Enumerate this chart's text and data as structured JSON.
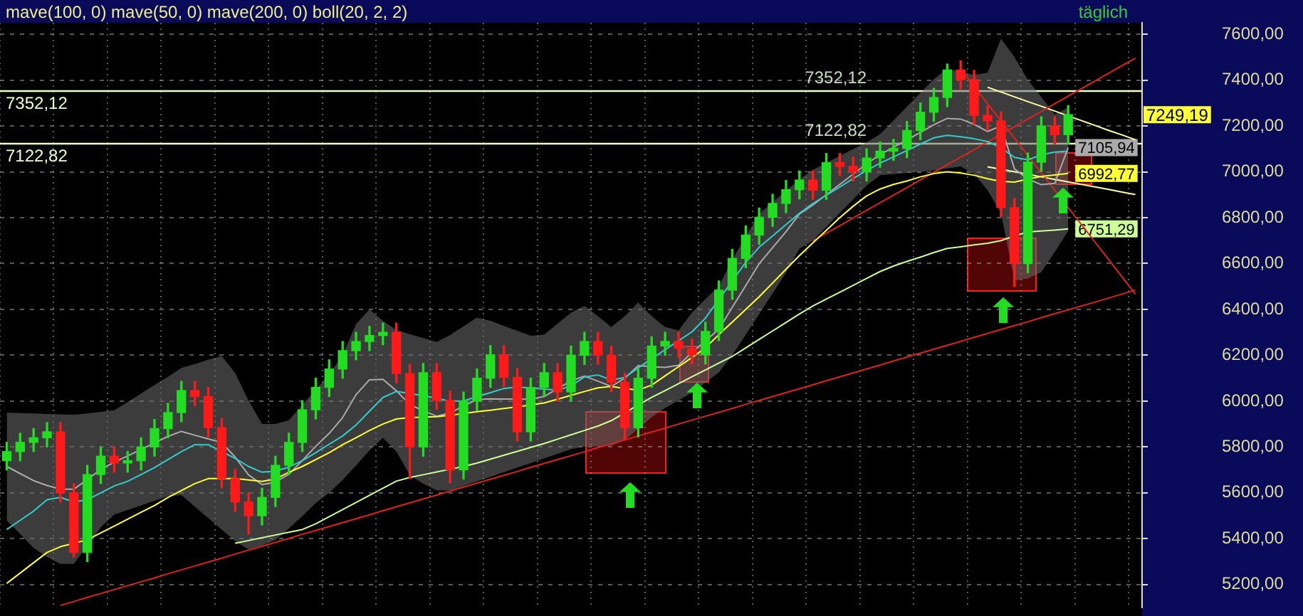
{
  "chart_data": {
    "type": "candlestick",
    "title": "mave(100, 0) mave(50, 0) mave(200, 0) boll(20, 2, 2)",
    "categories": [
      null,
      null,
      null,
      null,
      null,
      null,
      null,
      null,
      null,
      null,
      null,
      null,
      null,
      null,
      null,
      null,
      null,
      null,
      null,
      null,
      null,
      null,
      null,
      null,
      null,
      null,
      null,
      null,
      null,
      null,
      null,
      null,
      null,
      null,
      null,
      null,
      null,
      null,
      null,
      null,
      null,
      null,
      null,
      null,
      null,
      null,
      null,
      null,
      null,
      null,
      null,
      null,
      null,
      null,
      null,
      null,
      null,
      null,
      null,
      null,
      null,
      null,
      null,
      null,
      null,
      null,
      null,
      null,
      null,
      null,
      null,
      null,
      null,
      null,
      null,
      null,
      null,
      null,
      null,
      null,
      null,
      null,
      null,
      null,
      null
    ],
    "ohlc": [
      [
        5740,
        5820,
        5700,
        5780
      ],
      [
        5780,
        5860,
        5740,
        5820
      ],
      [
        5820,
        5880,
        5780,
        5840
      ],
      [
        5840,
        5906,
        5800,
        5866
      ],
      [
        5866,
        5906,
        5560,
        5600
      ],
      [
        5600,
        5640,
        5320,
        5340
      ],
      [
        5340,
        5720,
        5300,
        5680
      ],
      [
        5680,
        5800,
        5640,
        5760
      ],
      [
        5760,
        5800,
        5690,
        5730
      ],
      [
        5730,
        5780,
        5690,
        5740
      ],
      [
        5740,
        5840,
        5700,
        5800
      ],
      [
        5800,
        5920,
        5760,
        5880
      ],
      [
        5880,
        5990,
        5840,
        5950
      ],
      [
        5950,
        6086,
        5910,
        6046
      ],
      [
        6046,
        6086,
        5980,
        6020
      ],
      [
        6020,
        6060,
        5844,
        5884
      ],
      [
        5884,
        5924,
        5622,
        5662
      ],
      [
        5662,
        5702,
        5520,
        5560
      ],
      [
        5560,
        5600,
        5420,
        5500
      ],
      [
        5500,
        5620,
        5460,
        5580
      ],
      [
        5580,
        5760,
        5540,
        5720
      ],
      [
        5720,
        5860,
        5680,
        5820
      ],
      [
        5820,
        6002,
        5780,
        5962
      ],
      [
        5962,
        6100,
        5922,
        6060
      ],
      [
        6060,
        6180,
        6020,
        6140
      ],
      [
        6140,
        6260,
        6100,
        6220
      ],
      [
        6220,
        6300,
        6180,
        6260
      ],
      [
        6260,
        6326,
        6220,
        6286
      ],
      [
        6286,
        6340,
        6246,
        6300
      ],
      [
        6300,
        6340,
        6080,
        6120
      ],
      [
        6120,
        6160,
        5662,
        5800
      ],
      [
        5800,
        6164,
        5760,
        6124
      ],
      [
        6124,
        6164,
        5964,
        6004
      ],
      [
        6004,
        6044,
        5644,
        5700
      ],
      [
        5700,
        6040,
        5660,
        6000
      ],
      [
        6000,
        6140,
        5960,
        6100
      ],
      [
        6100,
        6242,
        6060,
        6202
      ],
      [
        6202,
        6242,
        6064,
        6104
      ],
      [
        6104,
        6144,
        5826,
        5866
      ],
      [
        5866,
        6100,
        5826,
        6060
      ],
      [
        6060,
        6164,
        6020,
        6124
      ],
      [
        6124,
        6164,
        6000,
        6040
      ],
      [
        6040,
        6240,
        6000,
        6200
      ],
      [
        6200,
        6300,
        6160,
        6260
      ],
      [
        6260,
        6300,
        6160,
        6200
      ],
      [
        6200,
        6240,
        6042,
        6082
      ],
      [
        6082,
        6122,
        5830,
        5884
      ],
      [
        5884,
        6140,
        5844,
        6100
      ],
      [
        6100,
        6280,
        6060,
        6240
      ],
      [
        6240,
        6300,
        6200,
        6260
      ],
      [
        6260,
        6300,
        6190,
        6230
      ],
      [
        6230,
        6270,
        6162,
        6202
      ],
      [
        6202,
        6344,
        6162,
        6304
      ],
      [
        6304,
        6524,
        6264,
        6484
      ],
      [
        6484,
        6662,
        6444,
        6622
      ],
      [
        6622,
        6764,
        6582,
        6724
      ],
      [
        6724,
        6842,
        6684,
        6802
      ],
      [
        6802,
        6902,
        6762,
        6862
      ],
      [
        6862,
        6962,
        6822,
        6922
      ],
      [
        6922,
        7004,
        6882,
        6964
      ],
      [
        6964,
        7004,
        6880,
        6920
      ],
      [
        6920,
        7080,
        6880,
        7040
      ],
      [
        7040,
        7080,
        6984,
        7024
      ],
      [
        7024,
        7064,
        6960,
        7000
      ],
      [
        7000,
        7100,
        6960,
        7060
      ],
      [
        7060,
        7130,
        7020,
        7090
      ],
      [
        7090,
        7142,
        7050,
        7102
      ],
      [
        7102,
        7220,
        7062,
        7180
      ],
      [
        7180,
        7300,
        7140,
        7260
      ],
      [
        7260,
        7364,
        7220,
        7324
      ],
      [
        7324,
        7470,
        7284,
        7444
      ],
      [
        7444,
        7484,
        7362,
        7402
      ],
      [
        7402,
        7442,
        7206,
        7246
      ],
      [
        7246,
        7286,
        7182,
        7222
      ],
      [
        7222,
        7262,
        6804,
        6844
      ],
      [
        6844,
        6884,
        6500,
        6600
      ],
      [
        6600,
        7082,
        6560,
        7042
      ],
      [
        7042,
        7240,
        7002,
        7200
      ],
      [
        7200,
        7240,
        7122,
        7162
      ],
      [
        7162,
        7289,
        7122,
        7249.19
      ],
      null,
      null,
      null,
      null,
      null
    ],
    "series": [
      {
        "type": "line",
        "color": "#33cccc",
        "values": [
          5440,
          5480,
          5520,
          5570,
          5580,
          5560,
          5570,
          5600,
          5630,
          5650,
          5680,
          5710,
          5745,
          5780,
          5810,
          5810,
          5780,
          5750,
          5715,
          5690,
          5695,
          5712,
          5740,
          5775,
          5812,
          5848,
          5896,
          5956,
          6016,
          6042,
          6033,
          6024,
          6013,
          5999,
          6001,
          6019,
          6037,
          6055,
          6062,
          6057,
          6052,
          6048,
          6066,
          6105,
          6114,
          6092,
          6103,
          6145,
          6185,
          6224,
          6263,
          6302,
          6362,
          6443,
          6524,
          6605,
          6671,
          6720,
          6770,
          6819,
          6862,
          6898,
          6934,
          6970,
          7006,
          7038,
          7065,
          7093,
          7121,
          7148,
          7159,
          7153,
          7144,
          7132,
          7105,
          7063,
          7052,
          7074,
          7086,
          7090,
          null,
          null,
          null,
          null,
          null
        ]
      },
      {
        "type": "line",
        "color": "#ffff33",
        "values": [
          5205,
          5250,
          5295,
          5340,
          5365,
          5380,
          5395,
          5425,
          5455,
          5485,
          5515,
          5545,
          5580,
          5610,
          5640,
          5662,
          5662,
          5662,
          5656,
          5650,
          5660,
          5690,
          5715,
          5745,
          5775,
          5810,
          5840,
          5872,
          5900,
          5922,
          5928,
          5930,
          5932,
          5938,
          5946,
          5954,
          5960,
          5968,
          5975,
          5983,
          5992,
          6008,
          6025,
          6042,
          6058,
          6064,
          6055,
          6048,
          6070,
          6110,
          6150,
          6190,
          6232,
          6290,
          6345,
          6400,
          6455,
          6515,
          6575,
          6635,
          6690,
          6745,
          6800,
          6850,
          6895,
          6925,
          6945,
          6960,
          6978,
          6992,
          7000,
          6995,
          6985,
          6970,
          6958,
          6955,
          6968,
          6980,
          6986,
          6992.77,
          null,
          null,
          null,
          null,
          null
        ],
        "value_labels": [
          null,
          null,
          null,
          null,
          null,
          null,
          null,
          null,
          null,
          null,
          null,
          null,
          null,
          null,
          null,
          null,
          null,
          null,
          null,
          null,
          null,
          null,
          null,
          null,
          null,
          null,
          null,
          null,
          null,
          null,
          null,
          null,
          null,
          null,
          null,
          null,
          null,
          null,
          null,
          null,
          null,
          null,
          null,
          null,
          null,
          null,
          null,
          null,
          null,
          null,
          null,
          null,
          null,
          null,
          null,
          null,
          null,
          null,
          null,
          null,
          null,
          null,
          null,
          null,
          null,
          null,
          null,
          null,
          null,
          null,
          null,
          null,
          null,
          null,
          null,
          null,
          null,
          null,
          null,
          "6992,77",
          null,
          null,
          null,
          null,
          null
        ]
      },
      {
        "type": "line",
        "color": "#ccff99",
        "values": [
          null,
          null,
          null,
          null,
          null,
          null,
          null,
          null,
          null,
          null,
          null,
          null,
          null,
          null,
          null,
          null,
          null,
          5380,
          5392,
          5404,
          5416,
          5428,
          5440,
          5465,
          5496,
          5527,
          5558,
          5589,
          5620,
          5651,
          5667,
          5679,
          5691,
          5703,
          5715,
          5730,
          5747,
          5764,
          5781,
          5798,
          5815,
          5834,
          5853,
          5872,
          5891,
          5915,
          5949,
          5983,
          6016,
          6046,
          6076,
          6106,
          6136,
          6166,
          6195,
          6232,
          6269,
          6306,
          6343,
          6380,
          6415,
          6445,
          6475,
          6505,
          6535,
          6565,
          6589,
          6609,
          6628,
          6648,
          6666,
          6673,
          6681,
          6688,
          6700,
          6720,
          6738,
          6742,
          6746,
          6751.29,
          null,
          null,
          null,
          null,
          null
        ],
        "value_labels": [
          null,
          null,
          null,
          null,
          null,
          null,
          null,
          null,
          null,
          null,
          null,
          null,
          null,
          null,
          null,
          null,
          null,
          null,
          null,
          null,
          null,
          null,
          null,
          null,
          null,
          null,
          null,
          null,
          null,
          null,
          null,
          null,
          null,
          null,
          null,
          null,
          null,
          null,
          null,
          null,
          null,
          null,
          null,
          null,
          null,
          null,
          null,
          null,
          null,
          null,
          null,
          null,
          null,
          null,
          null,
          null,
          null,
          null,
          null,
          null,
          null,
          null,
          null,
          null,
          null,
          null,
          null,
          null,
          null,
          null,
          null,
          null,
          null,
          null,
          null,
          null,
          null,
          null,
          null,
          "6751,29",
          null,
          null,
          null,
          null,
          null
        ]
      },
      {
        "type": "line",
        "color": "#aaaaaa",
        "values": [
          5715,
          5684,
          5653,
          5632,
          5616,
          5616,
          5658,
          5702,
          5733,
          5761,
          5789,
          5818,
          5846,
          5868,
          5851,
          5835,
          5819,
          5756,
          5678,
          5636,
          5647,
          5681,
          5741,
          5803,
          5859,
          5928,
          6028,
          6093,
          6095,
          6045,
          5985,
          5958,
          5934,
          5949,
          5978,
          6007,
          6010,
          6009,
          6009,
          6008,
          6020,
          6054,
          6088,
          6109,
          6087,
          6064,
          6100,
          6155,
          6150,
          6147,
          6156,
          6212,
          6263,
          6313,
          6409,
          6504,
          6599,
          6669,
          6739,
          6816,
          6855,
          6900,
          6945,
          6990,
          7035,
          7075,
          7107,
          7140,
          7172,
          7205,
          7233,
          7230,
          7207,
          7176,
          7200,
          7013,
          6968,
          6944,
          6950,
          7105.94,
          null,
          null,
          null,
          null,
          null
        ],
        "value_labels": [
          null,
          null,
          null,
          null,
          null,
          null,
          null,
          null,
          null,
          null,
          null,
          null,
          null,
          null,
          null,
          null,
          null,
          null,
          null,
          null,
          null,
          null,
          null,
          null,
          null,
          null,
          null,
          null,
          null,
          null,
          null,
          null,
          null,
          null,
          null,
          null,
          null,
          null,
          null,
          null,
          null,
          null,
          null,
          null,
          null,
          null,
          null,
          null,
          null,
          null,
          null,
          null,
          null,
          null,
          null,
          null,
          null,
          null,
          null,
          null,
          null,
          null,
          null,
          null,
          null,
          null,
          null,
          null,
          null,
          null,
          null,
          null,
          null,
          null,
          null,
          null,
          null,
          null,
          null,
          "7105,94",
          null,
          null,
          null,
          null,
          null
        ],
        "upper": [
          5950,
          5948,
          5946,
          5944,
          5942,
          5941,
          5946,
          5953,
          5960,
          5996,
          6033,
          6070,
          6106,
          6145,
          6162,
          6180,
          6197,
          6122,
          6002,
          5900,
          5900,
          5917,
          5983,
          6050,
          6117,
          6200,
          6336,
          6400,
          6350,
          6310,
          6292,
          6275,
          6258,
          6288,
          6326,
          6364,
          6350,
          6328,
          6307,
          6285,
          6290,
          6338,
          6386,
          6415,
          6370,
          6323,
          6370,
          6430,
          6370,
          6323,
          6308,
          6386,
          6445,
          6500,
          6617,
          6717,
          6817,
          6867,
          6917,
          6967,
          7009,
          7039,
          7069,
          7099,
          7129,
          7164,
          7224,
          7284,
          7344,
          7404,
          7450,
          7436,
          7423,
          7432,
          7580,
          7500,
          7400,
          7325,
          7250,
          7280,
          null,
          null,
          null,
          null,
          null
        ],
        "lower": [
          5480,
          5420,
          5360,
          5320,
          5290,
          5290,
          5370,
          5450,
          5505,
          5525,
          5545,
          5565,
          5585,
          5590,
          5540,
          5490,
          5440,
          5390,
          5353,
          5371,
          5394,
          5444,
          5499,
          5555,
          5600,
          5656,
          5720,
          5785,
          5840,
          5780,
          5678,
          5640,
          5610,
          5610,
          5630,
          5650,
          5670,
          5690,
          5710,
          5730,
          5750,
          5770,
          5790,
          5802,
          5803,
          5805,
          5830,
          5880,
          5930,
          5970,
          6003,
          6037,
          6080,
          6125,
          6200,
          6290,
          6380,
          6470,
          6560,
          6665,
          6700,
          6760,
          6820,
          6880,
          6940,
          6985,
          6990,
          6995,
          7000,
          7006,
          7015,
          7023,
          6990,
          6920,
          6820,
          6526,
          6535,
          6562,
          6650,
          6742,
          null,
          null,
          null,
          null,
          null
        ]
      },
      {
        "type": "line",
        "color": "#dd2222",
        "values": [
          null,
          null,
          null,
          null,
          5109,
          5126,
          5144,
          5161,
          5178,
          5195,
          5212,
          5229,
          5247,
          5264,
          5281,
          5298,
          5315,
          5333,
          5350,
          5367,
          5384,
          5401,
          5419,
          5436,
          5453,
          5470,
          5487,
          5504,
          5522,
          5539,
          5556,
          5573,
          5590,
          5608,
          5625,
          5642,
          5659,
          5676,
          5693,
          5711,
          5728,
          5745,
          5762,
          5779,
          5797,
          5814,
          5831,
          5848,
          5865,
          5882,
          5900,
          5917,
          5934,
          5951,
          5968,
          5986,
          6003,
          6020,
          6037,
          6054,
          6071,
          6089,
          6106,
          6123,
          6140,
          6157,
          6175,
          6192,
          6209,
          6226,
          6243,
          6260,
          6278,
          6295,
          6312,
          6329,
          6346,
          6364,
          6381,
          6398,
          6415,
          6432,
          6449,
          6467,
          6484
        ]
      },
      {
        "type": "line",
        "color": "#dd2222",
        "values": [
          null,
          null,
          null,
          null,
          null,
          null,
          null,
          null,
          null,
          null,
          null,
          null,
          null,
          null,
          null,
          null,
          null,
          null,
          null,
          null,
          null,
          null,
          null,
          null,
          null,
          null,
          null,
          null,
          null,
          null,
          null,
          null,
          null,
          null,
          null,
          null,
          null,
          null,
          null,
          null,
          null,
          null,
          null,
          null,
          null,
          null,
          null,
          null,
          null,
          null,
          null,
          null,
          null,
          null,
          null,
          null,
          null,
          null,
          null,
          null,
          6699,
          6732,
          6765,
          6799,
          6832,
          6865,
          6898,
          6931,
          6965,
          6998,
          7031,
          7064,
          7097,
          7131,
          7164,
          7197,
          7230,
          7263,
          7297,
          7330,
          7363,
          7396,
          7429,
          7463,
          7496
        ]
      },
      {
        "type": "line",
        "color": "#dd2222",
        "values": [
          null,
          null,
          null,
          null,
          null,
          null,
          null,
          null,
          null,
          null,
          null,
          null,
          null,
          null,
          null,
          null,
          null,
          null,
          null,
          null,
          null,
          null,
          null,
          null,
          null,
          null,
          null,
          null,
          null,
          null,
          null,
          null,
          null,
          null,
          null,
          null,
          null,
          null,
          null,
          null,
          null,
          null,
          null,
          null,
          null,
          null,
          null,
          null,
          null,
          null,
          null,
          null,
          null,
          null,
          null,
          null,
          null,
          null,
          null,
          null,
          null,
          null,
          null,
          null,
          null,
          null,
          null,
          null,
          null,
          null,
          null,
          7448,
          7373,
          7297,
          7222,
          7146,
          7071,
          6995,
          6920,
          6844,
          6769,
          6693,
          6618,
          6542,
          6467
        ]
      },
      {
        "type": "line",
        "color": "#ffffaa",
        "values": [
          null,
          null,
          null,
          null,
          null,
          null,
          null,
          null,
          null,
          null,
          null,
          null,
          null,
          null,
          null,
          null,
          null,
          null,
          null,
          null,
          null,
          null,
          null,
          null,
          null,
          null,
          null,
          null,
          null,
          null,
          null,
          null,
          null,
          null,
          null,
          null,
          null,
          null,
          null,
          null,
          null,
          null,
          null,
          null,
          null,
          null,
          null,
          null,
          null,
          null,
          null,
          null,
          null,
          null,
          null,
          null,
          null,
          null,
          null,
          null,
          null,
          null,
          null,
          null,
          null,
          null,
          null,
          null,
          null,
          null,
          null,
          null,
          null,
          7369,
          7348,
          7327,
          7306,
          7286,
          7265,
          7244,
          7223,
          7202,
          7181,
          7161,
          7140
        ]
      },
      {
        "type": "line",
        "color": "#ffffaa",
        "values": [
          null,
          null,
          null,
          null,
          null,
          null,
          null,
          null,
          null,
          null,
          null,
          null,
          null,
          null,
          null,
          null,
          null,
          null,
          null,
          null,
          null,
          null,
          null,
          null,
          null,
          null,
          null,
          null,
          null,
          null,
          null,
          null,
          null,
          null,
          null,
          null,
          null,
          null,
          null,
          null,
          null,
          null,
          null,
          null,
          null,
          null,
          null,
          null,
          null,
          null,
          null,
          null,
          null,
          null,
          null,
          null,
          null,
          null,
          null,
          null,
          null,
          null,
          null,
          null,
          null,
          null,
          null,
          null,
          null,
          null,
          null,
          null,
          null,
          7022,
          7011,
          7000,
          6989,
          6978,
          6967,
          6956,
          6945,
          6934,
          6923,
          6912,
          6901
        ]
      }
    ],
    "ref_lines": [
      {
        "axis": "y",
        "value": 7352.12,
        "label": "7352,12",
        "color": "#eeffcc"
      },
      {
        "axis": "y",
        "value": 7122.82,
        "label": "7122,82",
        "color": "#eeffcc"
      }
    ],
    "annotations": [
      {
        "text": "7352,12",
        "y": 7352.12
      },
      {
        "text": "7122,82",
        "y": 7122.82
      },
      "täglich"
    ],
    "value_labels": [
      null,
      null,
      null,
      null,
      null,
      null,
      null,
      null,
      null,
      null,
      null,
      null,
      null,
      null,
      null,
      null,
      null,
      null,
      null,
      null,
      null,
      null,
      null,
      null,
      null,
      null,
      null,
      null,
      null,
      null,
      null,
      null,
      null,
      null,
      null,
      null,
      null,
      null,
      null,
      null,
      null,
      null,
      null,
      null,
      null,
      null,
      null,
      null,
      null,
      null,
      null,
      null,
      null,
      null,
      null,
      null,
      null,
      null,
      null,
      null,
      null,
      null,
      null,
      null,
      null,
      null,
      null,
      null,
      null,
      null,
      null,
      null,
      null,
      null,
      null,
      null,
      null,
      null,
      null,
      "7249,19",
      null,
      null,
      null,
      null,
      null
    ],
    "ylim": [
      5100,
      7650
    ],
    "yticks": [
      {
        "value": 5200,
        "label": "5200,00"
      },
      {
        "value": 5400,
        "label": "5400,00"
      },
      {
        "value": 5600,
        "label": "5600,00"
      },
      {
        "value": 5800,
        "label": "5800,00"
      },
      {
        "value": 6000,
        "label": "6000,00"
      },
      {
        "value": 6200,
        "label": "6200,00"
      },
      {
        "value": 6400,
        "label": "6400,00"
      },
      {
        "value": 6600,
        "label": "6600,00"
      },
      {
        "value": 6800,
        "label": "6800,00"
      },
      {
        "value": 7000,
        "label": "7000,00"
      },
      {
        "value": 7200,
        "label": "7200,00"
      },
      {
        "value": 7400,
        "label": "7400,00"
      },
      {
        "value": 7600,
        "label": "7600,00"
      }
    ],
    "grid": true,
    "tick_labels": "y"
  }
}
